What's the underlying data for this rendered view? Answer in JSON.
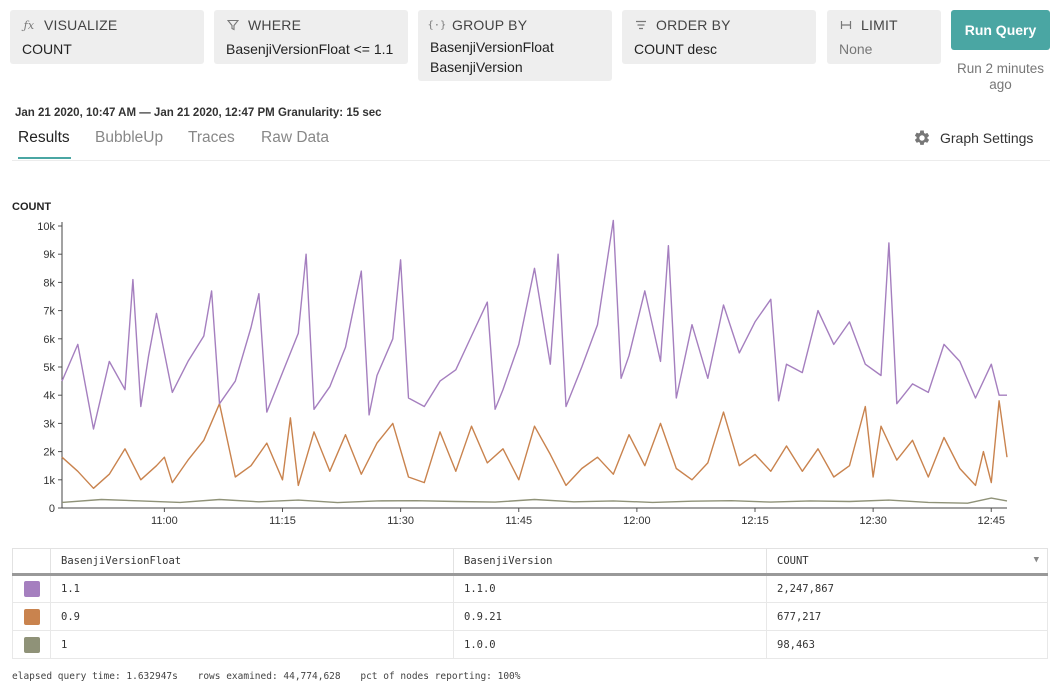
{
  "query": {
    "visualize": {
      "label": "VISUALIZE",
      "icon": "function-icon",
      "value": "COUNT"
    },
    "where": {
      "label": "WHERE",
      "icon": "filter-icon",
      "value": "BasenjiVersionFloat <= 1.1"
    },
    "group_by": {
      "label": "GROUP BY",
      "icon": "braces-icon",
      "values": [
        "BasenjiVersionFloat",
        "BasenjiVersion"
      ]
    },
    "order_by": {
      "label": "ORDER BY",
      "icon": "sort-icon",
      "value": "COUNT desc"
    },
    "limit": {
      "label": "LIMIT",
      "icon": "limit-icon",
      "value": "None"
    },
    "run_label": "Run Query",
    "run_status": "Run 2 minutes ago"
  },
  "time_range": "Jan 21 2020, 10:47 AM — Jan 21 2020, 12:47 PM Granularity: 15 sec",
  "tabs": [
    "Results",
    "BubbleUp",
    "Traces",
    "Raw Data"
  ],
  "active_tab": "Results",
  "graph_settings_label": "Graph Settings",
  "chart_data": {
    "type": "line",
    "ylabel": "COUNT",
    "ylim": [
      0,
      10000
    ],
    "y_ticks": [
      "0",
      "1k",
      "2k",
      "3k",
      "4k",
      "5k",
      "6k",
      "7k",
      "8k",
      "9k",
      "10k"
    ],
    "xlim_minutes": [
      0,
      120
    ],
    "x_ticks": [
      {
        "label": "11:00",
        "minute": 13
      },
      {
        "label": "11:15",
        "minute": 28
      },
      {
        "label": "11:30",
        "minute": 43
      },
      {
        "label": "11:45",
        "minute": 58
      },
      {
        "label": "12:00",
        "minute": 73
      },
      {
        "label": "12:15",
        "minute": 88
      },
      {
        "label": "12:30",
        "minute": 103
      },
      {
        "label": "12:45",
        "minute": 118
      }
    ],
    "series": [
      {
        "name": "1.1",
        "color": "#a57fbf",
        "x": [
          0,
          2,
          4,
          6,
          8,
          9,
          10,
          11,
          12,
          14,
          16,
          18,
          19,
          20,
          22,
          24,
          25,
          26,
          28,
          30,
          31,
          32,
          34,
          36,
          38,
          39,
          40,
          42,
          43,
          44,
          46,
          48,
          50,
          52,
          54,
          55,
          56,
          58,
          60,
          62,
          63,
          64,
          66,
          68,
          70,
          71,
          72,
          74,
          76,
          77,
          78,
          80,
          82,
          84,
          86,
          88,
          90,
          91,
          92,
          94,
          96,
          98,
          100,
          102,
          104,
          105,
          106,
          108,
          110,
          112,
          114,
          116,
          118,
          119,
          120
        ],
        "values": [
          4500,
          5800,
          2800,
          5200,
          4200,
          8100,
          3600,
          5400,
          6900,
          4100,
          5200,
          6100,
          7700,
          3700,
          4500,
          6400,
          7600,
          3400,
          4800,
          6200,
          9000,
          3500,
          4300,
          5700,
          8400,
          3300,
          4700,
          6000,
          8800,
          3900,
          3600,
          4500,
          4900,
          6100,
          7300,
          3500,
          4200,
          5800,
          8500,
          5100,
          9000,
          3600,
          5000,
          6500,
          10200,
          4600,
          5400,
          7700,
          5200,
          9300,
          3900,
          6500,
          4600,
          7200,
          5500,
          6600,
          7400,
          3800,
          5100,
          4800,
          7000,
          5800,
          6600,
          5100,
          4700,
          9400,
          3700,
          4400,
          4100,
          5800,
          5200,
          3900,
          5100,
          4000,
          4000
        ]
      },
      {
        "name": "0.9",
        "color": "#c9834e",
        "x": [
          0,
          2,
          4,
          6,
          8,
          10,
          12,
          13,
          14,
          16,
          18,
          20,
          22,
          24,
          26,
          28,
          29,
          30,
          32,
          34,
          36,
          38,
          40,
          42,
          44,
          46,
          48,
          50,
          52,
          54,
          56,
          58,
          60,
          62,
          64,
          66,
          68,
          70,
          72,
          74,
          76,
          78,
          80,
          82,
          84,
          86,
          88,
          90,
          92,
          94,
          96,
          98,
          100,
          102,
          103,
          104,
          106,
          108,
          110,
          112,
          114,
          116,
          117,
          118,
          119,
          120
        ],
        "values": [
          1800,
          1300,
          700,
          1200,
          2100,
          1000,
          1500,
          1800,
          900,
          1700,
          2400,
          3700,
          1100,
          1500,
          2300,
          1000,
          3200,
          800,
          2700,
          1300,
          2600,
          1200,
          2300,
          3000,
          1100,
          900,
          2700,
          1300,
          2900,
          1600,
          2100,
          1000,
          2900,
          1900,
          800,
          1400,
          1800,
          1200,
          2600,
          1500,
          3000,
          1400,
          1000,
          1600,
          3400,
          1500,
          1900,
          1300,
          2200,
          1300,
          2100,
          1100,
          1500,
          3600,
          1100,
          2900,
          1700,
          2400,
          1100,
          2500,
          1400,
          800,
          2000,
          900,
          3800,
          1800
        ]
      },
      {
        "name": "1",
        "color": "#8f9278",
        "x": [
          0,
          5,
          10,
          15,
          20,
          25,
          30,
          35,
          40,
          45,
          50,
          55,
          60,
          65,
          70,
          75,
          80,
          85,
          90,
          95,
          100,
          105,
          110,
          115,
          118,
          120
        ],
        "values": [
          200,
          300,
          250,
          200,
          300,
          220,
          280,
          190,
          250,
          260,
          230,
          210,
          300,
          220,
          250,
          200,
          240,
          260,
          210,
          250,
          230,
          280,
          200,
          170,
          350,
          250
        ]
      }
    ]
  },
  "table": {
    "columns": [
      "BasenjiVersionFloat",
      "BasenjiVersion",
      "COUNT"
    ],
    "rows": [
      {
        "color": "#a57fbf",
        "cells": [
          "1.1",
          "1.1.0",
          "2,247,867"
        ]
      },
      {
        "color": "#c9834e",
        "cells": [
          "0.9",
          "0.9.21",
          "677,217"
        ]
      },
      {
        "color": "#8f9278",
        "cells": [
          "1",
          "1.0.0",
          "98,463"
        ]
      }
    ]
  },
  "footer": {
    "elapsed": "elapsed query time: 1.632947s",
    "rows_examined": "rows examined: 44,774,628",
    "pct_nodes": "pct of nodes reporting: 100%"
  }
}
